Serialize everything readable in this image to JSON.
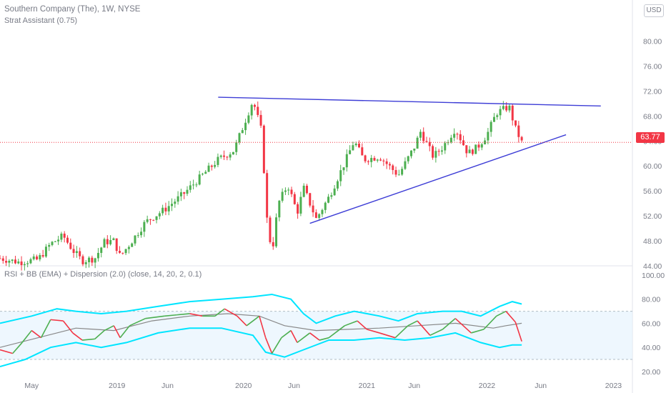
{
  "header": {
    "title": "Southern Company (The), 1W, NYSE",
    "indicator": "Strat Assistant (0.75)",
    "currency": "USD",
    "last_price": "63.77"
  },
  "rsi_panel": {
    "title": "RSI + BB (EMA) + Dispersion (2.0) (close, 14, 20, 2, 0.1)"
  },
  "chart_data": [
    {
      "type": "candlestick",
      "title": "Southern Company (The), 1W, NYSE",
      "x_ticks": [
        "May",
        "2019",
        "Jun",
        "2020",
        "Jun",
        "2021",
        "Jun",
        "2022",
        "Jun",
        "2023"
      ],
      "y_ticks": [
        "44.00",
        "48.00",
        "52.00",
        "56.00",
        "60.00",
        "64.00",
        "68.00",
        "72.00",
        "76.00",
        "80.00"
      ],
      "ylim": [
        44,
        82
      ],
      "last_price": 63.77,
      "price_path": [
        [
          0,
          45.2
        ],
        [
          0.03,
          44.6
        ],
        [
          0.06,
          45.0
        ],
        [
          0.08,
          47.5
        ],
        [
          0.1,
          48.8
        ],
        [
          0.115,
          46.5
        ],
        [
          0.13,
          44.8
        ],
        [
          0.15,
          45.2
        ],
        [
          0.165,
          47.8
        ],
        [
          0.18,
          48.0
        ],
        [
          0.19,
          45.5
        ],
        [
          0.205,
          47.5
        ],
        [
          0.23,
          51.0
        ],
        [
          0.26,
          53.0
        ],
        [
          0.29,
          55.5
        ],
        [
          0.32,
          58.5
        ],
        [
          0.345,
          61.0
        ],
        [
          0.37,
          62.5
        ],
        [
          0.385,
          66.5
        ],
        [
          0.4,
          70.5
        ],
        [
          0.415,
          65.0
        ],
        [
          0.42,
          53.0
        ],
        [
          0.43,
          46.0
        ],
        [
          0.44,
          54.0
        ],
        [
          0.455,
          57.0
        ],
        [
          0.47,
          52.5
        ],
        [
          0.48,
          56.5
        ],
        [
          0.5,
          51.5
        ],
        [
          0.52,
          55.0
        ],
        [
          0.545,
          60.5
        ],
        [
          0.56,
          64.0
        ],
        [
          0.575,
          61.0
        ],
        [
          0.6,
          61.5
        ],
        [
          0.63,
          58.5
        ],
        [
          0.655,
          63.0
        ],
        [
          0.665,
          65.5
        ],
        [
          0.685,
          61.5
        ],
        [
          0.7,
          63.0
        ],
        [
          0.72,
          66.0
        ],
        [
          0.74,
          62.0
        ],
        [
          0.755,
          63.0
        ],
        [
          0.77,
          65.0
        ],
        [
          0.785,
          68.5
        ],
        [
          0.805,
          69.5
        ],
        [
          0.815,
          66.0
        ],
        [
          0.825,
          63.77
        ]
      ],
      "trendlines": [
        {
          "label": "upper",
          "from": [
            0.345,
            71.0
          ],
          "to": [
            0.95,
            69.6
          ]
        },
        {
          "label": "lower",
          "from": [
            0.49,
            50.8
          ],
          "to": [
            0.895,
            65.0
          ]
        }
      ]
    },
    {
      "type": "line",
      "title": "RSI + BB (EMA) + Dispersion (2.0) (close, 14, 20, 2, 0.1)",
      "y_ticks": [
        "20.00",
        "40.00",
        "60.00",
        "80.00",
        "100.00"
      ],
      "ylim": [
        14,
        100
      ],
      "band": [
        30,
        70
      ],
      "rsi": [
        [
          0,
          38
        ],
        [
          0.02,
          35
        ],
        [
          0.035,
          44
        ],
        [
          0.05,
          54
        ],
        [
          0.065,
          48
        ],
        [
          0.08,
          63
        ],
        [
          0.1,
          62
        ],
        [
          0.115,
          52
        ],
        [
          0.13,
          46
        ],
        [
          0.15,
          47
        ],
        [
          0.165,
          54
        ],
        [
          0.18,
          58
        ],
        [
          0.19,
          48
        ],
        [
          0.205,
          58
        ],
        [
          0.23,
          64
        ],
        [
          0.26,
          66
        ],
        [
          0.28,
          67
        ],
        [
          0.3,
          68
        ],
        [
          0.32,
          66
        ],
        [
          0.34,
          66
        ],
        [
          0.355,
          72
        ],
        [
          0.375,
          66
        ],
        [
          0.39,
          58
        ],
        [
          0.41,
          66
        ],
        [
          0.42,
          48
        ],
        [
          0.43,
          35
        ],
        [
          0.445,
          48
        ],
        [
          0.46,
          54
        ],
        [
          0.47,
          44
        ],
        [
          0.49,
          52
        ],
        [
          0.505,
          46
        ],
        [
          0.52,
          48
        ],
        [
          0.545,
          58
        ],
        [
          0.565,
          62
        ],
        [
          0.58,
          55
        ],
        [
          0.6,
          52
        ],
        [
          0.625,
          48
        ],
        [
          0.645,
          58
        ],
        [
          0.66,
          62
        ],
        [
          0.68,
          50
        ],
        [
          0.7,
          55
        ],
        [
          0.72,
          64
        ],
        [
          0.745,
          52
        ],
        [
          0.765,
          55
        ],
        [
          0.785,
          66
        ],
        [
          0.8,
          70
        ],
        [
          0.815,
          61
        ],
        [
          0.825,
          45
        ]
      ],
      "upper_band": [
        [
          0,
          60
        ],
        [
          0.05,
          66
        ],
        [
          0.09,
          72
        ],
        [
          0.12,
          70
        ],
        [
          0.16,
          68
        ],
        [
          0.2,
          70
        ],
        [
          0.25,
          74
        ],
        [
          0.3,
          78
        ],
        [
          0.35,
          80
        ],
        [
          0.4,
          82
        ],
        [
          0.43,
          84
        ],
        [
          0.46,
          80
        ],
        [
          0.48,
          68
        ],
        [
          0.5,
          60
        ],
        [
          0.53,
          66
        ],
        [
          0.56,
          70
        ],
        [
          0.6,
          66
        ],
        [
          0.63,
          62
        ],
        [
          0.66,
          68
        ],
        [
          0.7,
          70
        ],
        [
          0.73,
          70
        ],
        [
          0.76,
          66
        ],
        [
          0.79,
          74
        ],
        [
          0.81,
          78
        ],
        [
          0.825,
          76
        ]
      ],
      "lower_band": [
        [
          0,
          24
        ],
        [
          0.04,
          30
        ],
        [
          0.08,
          40
        ],
        [
          0.12,
          44
        ],
        [
          0.16,
          40
        ],
        [
          0.2,
          44
        ],
        [
          0.25,
          52
        ],
        [
          0.3,
          56
        ],
        [
          0.35,
          56
        ],
        [
          0.4,
          50
        ],
        [
          0.42,
          36
        ],
        [
          0.45,
          32
        ],
        [
          0.48,
          38
        ],
        [
          0.52,
          46
        ],
        [
          0.56,
          46
        ],
        [
          0.6,
          48
        ],
        [
          0.64,
          46
        ],
        [
          0.68,
          48
        ],
        [
          0.72,
          52
        ],
        [
          0.76,
          44
        ],
        [
          0.79,
          40
        ],
        [
          0.81,
          42
        ],
        [
          0.825,
          42
        ]
      ],
      "basis": [
        [
          0,
          40
        ],
        [
          0.06,
          48
        ],
        [
          0.12,
          56
        ],
        [
          0.18,
          54
        ],
        [
          0.24,
          62
        ],
        [
          0.3,
          66
        ],
        [
          0.36,
          68
        ],
        [
          0.41,
          66
        ],
        [
          0.45,
          58
        ],
        [
          0.5,
          54
        ],
        [
          0.55,
          55
        ],
        [
          0.6,
          56
        ],
        [
          0.66,
          58
        ],
        [
          0.72,
          60
        ],
        [
          0.78,
          56
        ],
        [
          0.8,
          58
        ],
        [
          0.825,
          60
        ]
      ]
    }
  ],
  "colors": {
    "up": "#4caf50",
    "down": "#f23645",
    "trend": "#3d3dd6",
    "band_line": "#00e5ff",
    "basis": "#888888",
    "band_fill": "#e3f2fd"
  }
}
